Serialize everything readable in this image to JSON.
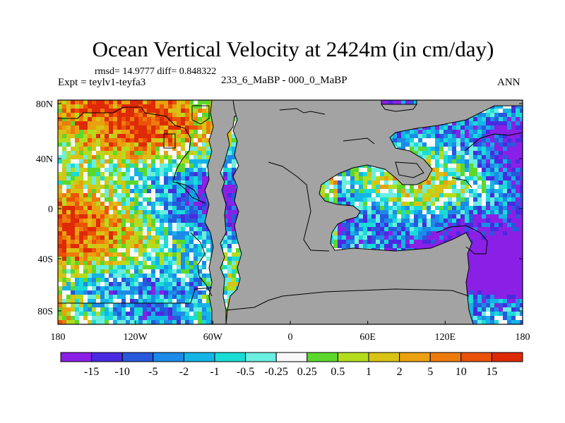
{
  "title": "Ocean Vertical Velocity at 2424m (in cm/day)",
  "stats": "rmsd= 14.9777 diff= 0.848322",
  "expt": "Expt = teylv1-teyfa3",
  "subtitle": "233_6_MaBP - 000_0_MaBP",
  "season": "ANN",
  "colors": {
    "land": "#a3a3a3",
    "outline": "#000000"
  },
  "lat_labels": [
    "80N",
    "40N",
    "0",
    "40S",
    "80S"
  ],
  "lon_labels": [
    "180",
    "120W",
    "60W",
    "0",
    "60E",
    "120E",
    "180"
  ],
  "colorbar": {
    "labels": [
      "-15",
      "-10",
      "-5",
      "-2",
      "-1",
      "-0.5",
      "-0.25",
      "0.25",
      "0.5",
      "1",
      "2",
      "5",
      "10",
      "15"
    ],
    "colors": [
      "#8a20e6",
      "#4a2ae0",
      "#2858dc",
      "#1c8ae8",
      "#14b4e6",
      "#1adcd6",
      "#6aeee0",
      "#f8f8f8",
      "#5cd82c",
      "#b4dc1e",
      "#d8c214",
      "#eaa010",
      "#ee7a0c",
      "#ea5208",
      "#de2a06"
    ]
  }
}
